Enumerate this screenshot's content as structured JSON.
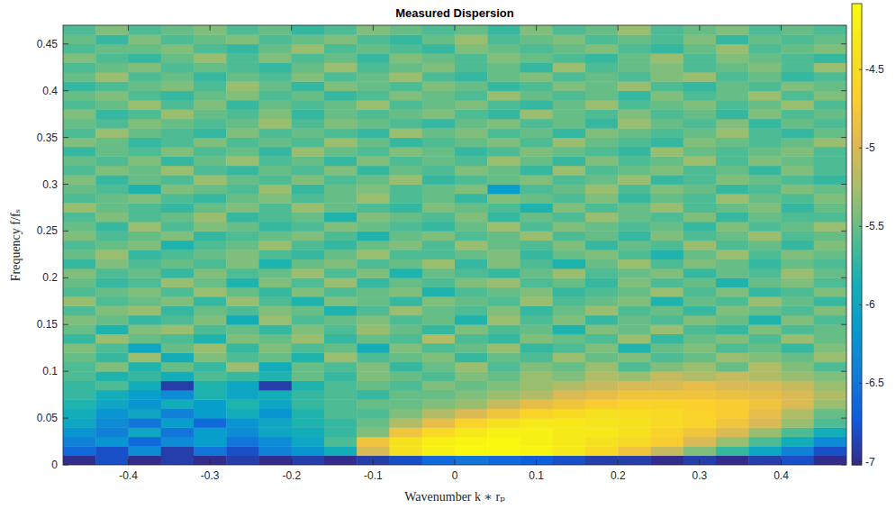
{
  "chart_data": {
    "type": "heatmap",
    "title": "Measured Dispersion",
    "x_label": "Wavenumber k ∗ rₚ",
    "y_label": "Frequency f/fₛ",
    "xlim": [
      -0.48,
      0.48
    ],
    "ylim": [
      0,
      0.47
    ],
    "xticks": [
      -0.4,
      -0.3,
      -0.2,
      -0.1,
      0,
      0.1,
      0.2,
      0.3,
      0.4
    ],
    "yticks": [
      0,
      0.05,
      0.1,
      0.15,
      0.2,
      0.25,
      0.3,
      0.35,
      0.4,
      0.45
    ],
    "color_range": [
      -7.02,
      -4.08
    ],
    "color_ticks": [
      -7,
      -6.5,
      -6,
      -5.5,
      -5,
      -4.5
    ],
    "x": [
      -0.46,
      -0.42,
      -0.38,
      -0.34,
      -0.3,
      -0.26,
      -0.22,
      -0.18,
      -0.14,
      -0.1,
      -0.06,
      -0.02,
      0.02,
      0.06,
      0.1,
      0.14,
      0.18,
      0.22,
      0.26,
      0.3,
      0.34,
      0.38,
      0.42,
      0.46
    ],
    "y": [
      0.005,
      0.015,
      0.025,
      0.035,
      0.045,
      0.055,
      0.065,
      0.075,
      0.085,
      0.095,
      0.105,
      0.115,
      0.125,
      0.135,
      0.145,
      0.155,
      0.165,
      0.175,
      0.185,
      0.195,
      0.205,
      0.215,
      0.225,
      0.235,
      0.245,
      0.255,
      0.265,
      0.275,
      0.285,
      0.295,
      0.305,
      0.315,
      0.325,
      0.335,
      0.345,
      0.355,
      0.365,
      0.375,
      0.385,
      0.395,
      0.405,
      0.415,
      0.425,
      0.435,
      0.445,
      0.455,
      0.465
    ],
    "cells": [
      [
        -7.0,
        -6.8,
        -7.0,
        -6.9,
        -7.0,
        -6.9,
        -7.0,
        -6.9,
        -7.0,
        -6.9,
        -6.8,
        -6.6,
        -6.5,
        -6.6,
        -6.7,
        -6.8,
        -6.9,
        -6.9,
        -7.0,
        -6.9,
        -7.0,
        -6.9,
        -6.8,
        -7.0
      ],
      [
        -6.6,
        -6.8,
        -6.3,
        -6.9,
        -6.5,
        -6.8,
        -6.4,
        -6.2,
        -5.9,
        -5.0,
        -4.4,
        -4.2,
        -4.1,
        -4.1,
        -4.15,
        -4.3,
        -4.5,
        -4.8,
        -5.1,
        -5.4,
        -5.7,
        -6.0,
        -6.4,
        -6.8
      ],
      [
        -6.4,
        -6.2,
        -6.6,
        -6.3,
        -6.1,
        -6.5,
        -6.3,
        -6.0,
        -5.6,
        -4.8,
        -4.4,
        -4.2,
        -4.15,
        -4.1,
        -4.2,
        -4.3,
        -4.4,
        -4.5,
        -4.7,
        -5.0,
        -5.3,
        -5.6,
        -5.9,
        -6.3
      ],
      [
        -6.2,
        -6.4,
        -6.0,
        -6.5,
        -6.1,
        -6.3,
        -6.0,
        -5.9,
        -5.7,
        -5.4,
        -4.8,
        -4.5,
        -4.3,
        -4.2,
        -4.2,
        -4.3,
        -4.3,
        -4.4,
        -4.6,
        -4.8,
        -5.0,
        -5.3,
        -5.6,
        -5.9
      ],
      [
        -6.0,
        -6.3,
        -6.5,
        -6.1,
        -6.6,
        -6.2,
        -6.0,
        -5.8,
        -5.7,
        -5.5,
        -5.2,
        -4.9,
        -4.6,
        -4.4,
        -4.3,
        -4.3,
        -4.35,
        -4.4,
        -4.5,
        -4.6,
        -4.8,
        -5.0,
        -5.3,
        -5.6
      ],
      [
        -5.9,
        -6.2,
        -6.0,
        -6.4,
        -6.1,
        -5.9,
        -6.2,
        -5.8,
        -5.6,
        -5.6,
        -5.4,
        -5.2,
        -5.0,
        -4.8,
        -4.6,
        -4.5,
        -4.4,
        -4.45,
        -4.5,
        -4.6,
        -4.7,
        -4.9,
        -5.2,
        -5.5
      ],
      [
        -5.8,
        -6.0,
        -6.2,
        -5.9,
        -6.1,
        -5.8,
        -6.0,
        -5.7,
        -5.6,
        -5.5,
        -5.5,
        -5.4,
        -5.3,
        -5.1,
        -4.9,
        -4.8,
        -4.7,
        -4.6,
        -4.6,
        -4.65,
        -4.7,
        -4.8,
        -5.0,
        -5.3
      ],
      [
        -5.7,
        -5.9,
        -6.1,
        -6.3,
        -5.8,
        -6.0,
        -5.9,
        -5.7,
        -5.6,
        -5.7,
        -5.5,
        -5.5,
        -5.4,
        -5.3,
        -5.2,
        -5.0,
        -4.9,
        -4.8,
        -4.8,
        -4.8,
        -4.85,
        -4.9,
        -5.0,
        -5.2
      ],
      [
        -5.7,
        -5.6,
        -5.9,
        -6.9,
        -5.8,
        -6.0,
        -6.9,
        -5.8,
        -5.6,
        -5.5,
        -5.6,
        -5.4,
        -5.5,
        -5.4,
        -5.3,
        -5.2,
        -5.1,
        -5.0,
        -5.0,
        -4.9,
        -5.0,
        -5.0,
        -5.1,
        -5.3
      ],
      [
        -5.6,
        -5.8,
        -5.7,
        -5.9,
        -5.6,
        -5.7,
        -5.8,
        -5.5,
        -5.7,
        -5.4,
        -5.5,
        -5.6,
        -5.4,
        -5.5,
        -5.3,
        -5.4,
        -5.2,
        -5.3,
        -5.1,
        -5.2,
        -5.1,
        -5.2,
        -5.3,
        -5.4
      ],
      [
        -5.6,
        -5.4,
        -5.8,
        -5.5,
        -5.7,
        -5.3,
        -5.9,
        -5.5,
        -5.6,
        -5.4,
        -5.7,
        -5.5,
        -5.3,
        -5.6,
        -5.4,
        -5.5,
        -5.3,
        -5.6,
        -5.4,
        -5.3,
        -5.5,
        -5.2,
        -5.4,
        -5.6
      ],
      [
        -5.5,
        -5.7,
        -5.3,
        -5.9,
        -5.4,
        -5.6,
        -5.5,
        -5.8,
        -5.3,
        -5.6,
        -5.5,
        -5.4,
        -5.7,
        -5.5,
        -5.6,
        -5.3,
        -5.5,
        -5.4,
        -5.6,
        -5.5,
        -5.3,
        -5.4,
        -5.5,
        -5.3
      ],
      [
        -5.4,
        -5.6,
        -6.0,
        -5.5,
        -5.3,
        -5.7,
        -5.4,
        -5.6,
        -5.5,
        -5.9,
        -5.4,
        -5.6,
        -5.5,
        -5.3,
        -5.7,
        -5.6,
        -5.4,
        -5.8,
        -5.5,
        -5.4,
        -5.6,
        -5.5,
        -5.7,
        -5.4
      ],
      [
        -5.7,
        -5.3,
        -5.5,
        -5.6,
        -5.8,
        -5.4,
        -5.5,
        -5.3,
        -5.7,
        -5.5,
        -5.6,
        -5.2,
        -5.6,
        -5.7,
        -5.4,
        -5.5,
        -5.6,
        -5.3,
        -5.7,
        -5.5,
        -5.4,
        -5.6,
        -5.3,
        -5.5
      ],
      [
        -5.5,
        -5.8,
        -5.4,
        -5.3,
        -5.6,
        -5.5,
        -5.7,
        -5.4,
        -5.6,
        -5.3,
        -5.5,
        -5.7,
        -5.4,
        -5.6,
        -5.5,
        -5.8,
        -5.4,
        -5.5,
        -5.3,
        -5.6,
        -5.7,
        -5.4,
        -5.6,
        -5.5
      ],
      [
        -5.4,
        -5.5,
        -5.7,
        -5.6,
        -5.4,
        -5.9,
        -5.3,
        -5.6,
        -5.5,
        -5.4,
        -5.6,
        -5.5,
        -5.8,
        -5.3,
        -5.6,
        -5.4,
        -5.7,
        -5.5,
        -5.6,
        -5.4,
        -5.5,
        -5.8,
        -5.4,
        -5.6
      ],
      [
        -5.6,
        -5.4,
        -5.3,
        -5.7,
        -5.5,
        -5.6,
        -5.4,
        -5.5,
        -5.8,
        -5.6,
        -5.3,
        -5.5,
        -5.6,
        -5.4,
        -5.7,
        -5.5,
        -5.3,
        -5.6,
        -5.5,
        -5.7,
        -5.4,
        -5.5,
        -5.6,
        -5.4
      ],
      [
        -5.3,
        -5.6,
        -5.5,
        -5.4,
        -5.7,
        -5.3,
        -5.6,
        -5.8,
        -5.4,
        -5.5,
        -5.7,
        -5.4,
        -5.5,
        -5.6,
        -5.3,
        -5.6,
        -5.5,
        -5.4,
        -5.8,
        -5.5,
        -5.6,
        -5.3,
        -5.5,
        -5.7
      ],
      [
        -5.6,
        -5.5,
        -5.4,
        -5.6,
        -5.3,
        -5.5,
        -5.7,
        -5.4,
        -5.6,
        -5.5,
        -5.4,
        -5.8,
        -5.6,
        -5.5,
        -5.4,
        -5.7,
        -5.6,
        -5.5,
        -5.3,
        -5.6,
        -5.4,
        -5.7,
        -5.6,
        -5.4
      ],
      [
        -5.5,
        -5.7,
        -5.6,
        -5.3,
        -5.5,
        -5.8,
        -5.4,
        -5.6,
        -5.3,
        -5.7,
        -5.5,
        -5.6,
        -5.4,
        -5.3,
        -5.6,
        -5.5,
        -5.7,
        -5.4,
        -5.6,
        -5.5,
        -5.8,
        -5.5,
        -5.4,
        -5.6
      ],
      [
        -5.4,
        -5.6,
        -5.5,
        -5.7,
        -5.4,
        -5.6,
        -5.5,
        -5.3,
        -5.6,
        -5.4,
        -5.8,
        -5.5,
        -5.6,
        -5.7,
        -5.5,
        -5.3,
        -5.6,
        -5.5,
        -5.4,
        -5.7,
        -5.5,
        -5.6,
        -5.3,
        -5.5
      ],
      [
        -5.7,
        -5.4,
        -5.6,
        -5.5,
        -5.6,
        -5.4,
        -5.8,
        -5.5,
        -5.4,
        -5.6,
        -5.5,
        -5.3,
        -5.7,
        -5.4,
        -5.6,
        -5.8,
        -5.5,
        -5.3,
        -5.6,
        -5.4,
        -5.5,
        -5.7,
        -5.5,
        -5.6
      ],
      [
        -5.5,
        -5.3,
        -5.7,
        -5.6,
        -5.5,
        -5.4,
        -5.6,
        -5.7,
        -5.5,
        -5.3,
        -5.6,
        -5.6,
        -5.5,
        -5.4,
        -5.7,
        -5.5,
        -5.4,
        -5.6,
        -5.8,
        -5.5,
        -5.3,
        -5.6,
        -5.4,
        -5.5
      ],
      [
        -5.6,
        -5.5,
        -5.4,
        -5.8,
        -5.6,
        -5.5,
        -5.3,
        -5.6,
        -5.7,
        -5.5,
        -5.4,
        -5.6,
        -5.3,
        -5.5,
        -5.6,
        -5.4,
        -5.7,
        -5.5,
        -5.6,
        -5.3,
        -5.6,
        -5.5,
        -5.7,
        -5.4
      ],
      [
        -5.4,
        -5.6,
        -5.5,
        -5.4,
        -5.7,
        -5.6,
        -5.5,
        -5.4,
        -5.6,
        -5.8,
        -5.5,
        -5.4,
        -5.6,
        -5.5,
        -5.3,
        -5.6,
        -5.5,
        -5.7,
        -5.4,
        -5.6,
        -5.5,
        -5.3,
        -5.6,
        -5.5
      ],
      [
        -5.5,
        -5.7,
        -5.3,
        -5.6,
        -5.4,
        -5.5,
        -5.7,
        -5.6,
        -5.4,
        -5.5,
        -5.6,
        -5.7,
        -5.5,
        -5.3,
        -5.6,
        -5.4,
        -5.5,
        -5.6,
        -5.5,
        -5.7,
        -5.4,
        -5.6,
        -5.5,
        -5.3
      ],
      [
        -5.6,
        -5.4,
        -5.6,
        -5.5,
        -5.3,
        -5.7,
        -5.6,
        -5.5,
        -5.8,
        -5.4,
        -5.5,
        -5.6,
        -5.4,
        -5.7,
        -5.5,
        -5.6,
        -5.3,
        -5.5,
        -5.6,
        -5.4,
        -5.7,
        -5.5,
        -5.6,
        -5.6
      ],
      [
        -5.3,
        -5.5,
        -5.6,
        -5.7,
        -5.5,
        -5.4,
        -5.6,
        -5.3,
        -5.5,
        -5.6,
        -5.7,
        -5.4,
        -5.5,
        -5.6,
        -5.8,
        -5.4,
        -5.6,
        -5.5,
        -5.3,
        -5.6,
        -5.5,
        -5.4,
        -5.7,
        -5.5
      ],
      [
        -5.6,
        -5.5,
        -5.4,
        -5.6,
        -5.7,
        -5.5,
        -5.4,
        -5.6,
        -5.5,
        -5.3,
        -5.6,
        -5.5,
        -5.7,
        -5.4,
        -5.5,
        -5.6,
        -5.4,
        -5.7,
        -5.5,
        -5.6,
        -5.3,
        -5.5,
        -5.6,
        -5.4
      ],
      [
        -5.5,
        -5.6,
        -5.8,
        -5.4,
        -5.5,
        -5.6,
        -5.3,
        -5.7,
        -5.5,
        -5.4,
        -5.6,
        -5.5,
        -5.4,
        -6.1,
        -5.6,
        -5.5,
        -5.3,
        -5.6,
        -5.4,
        -5.5,
        -5.7,
        -5.6,
        -5.4,
        -5.5
      ],
      [
        -5.4,
        -5.7,
        -5.5,
        -5.6,
        -5.3,
        -5.5,
        -5.6,
        -5.4,
        -5.6,
        -5.5,
        -5.3,
        -5.7,
        -5.6,
        -5.5,
        -5.4,
        -5.6,
        -5.5,
        -5.3,
        -5.7,
        -5.6,
        -5.4,
        -5.5,
        -5.6,
        -5.7
      ],
      [
        -5.6,
        -5.4,
        -5.5,
        -5.3,
        -5.6,
        -5.7,
        -5.5,
        -5.6,
        -5.4,
        -5.7,
        -5.5,
        -5.6,
        -5.4,
        -5.5,
        -5.7,
        -5.3,
        -5.6,
        -5.5,
        -5.4,
        -5.6,
        -5.5,
        -5.7,
        -5.4,
        -5.6
      ],
      [
        -5.5,
        -5.6,
        -5.4,
        -5.7,
        -5.5,
        -5.3,
        -5.6,
        -5.5,
        -5.7,
        -5.4,
        -5.6,
        -5.5,
        -5.6,
        -5.3,
        -5.5,
        -5.7,
        -5.4,
        -5.6,
        -5.5,
        -5.3,
        -5.6,
        -5.4,
        -5.5,
        -5.6
      ],
      [
        -5.7,
        -5.5,
        -5.6,
        -5.4,
        -5.6,
        -5.5,
        -5.7,
        -5.3,
        -5.5,
        -5.6,
        -5.4,
        -5.5,
        -5.7,
        -5.6,
        -5.4,
        -5.5,
        -5.6,
        -5.7,
        -5.3,
        -5.5,
        -5.6,
        -5.5,
        -5.4,
        -5.6
      ],
      [
        -5.4,
        -5.5,
        -5.7,
        -5.6,
        -5.4,
        -5.6,
        -5.5,
        -5.6,
        -5.3,
        -5.5,
        -5.7,
        -5.6,
        -5.5,
        -5.4,
        -5.6,
        -5.3,
        -5.5,
        -5.6,
        -5.7,
        -5.4,
        -5.5,
        -5.6,
        -5.5,
        -5.3
      ],
      [
        -5.6,
        -5.3,
        -5.5,
        -5.6,
        -5.7,
        -5.4,
        -5.6,
        -5.5,
        -5.6,
        -5.7,
        -5.3,
        -5.5,
        -5.4,
        -5.6,
        -5.5,
        -5.7,
        -5.4,
        -5.5,
        -5.6,
        -5.5,
        -5.3,
        -5.6,
        -5.7,
        -5.5
      ],
      [
        -5.5,
        -5.6,
        -5.4,
        -5.5,
        -5.6,
        -5.5,
        -5.3,
        -5.6,
        -5.4,
        -5.5,
        -5.6,
        -5.7,
        -5.5,
        -5.4,
        -5.6,
        -5.5,
        -5.7,
        -5.3,
        -5.5,
        -5.6,
        -5.4,
        -5.7,
        -5.5,
        -5.6
      ],
      [
        -5.4,
        -5.7,
        -5.6,
        -5.3,
        -5.5,
        -5.6,
        -5.4,
        -5.7,
        -5.5,
        -5.6,
        -5.5,
        -5.4,
        -5.6,
        -5.7,
        -5.3,
        -5.5,
        -5.6,
        -5.4,
        -5.6,
        -5.5,
        -5.7,
        -5.4,
        -5.6,
        -5.5
      ],
      [
        -5.6,
        -5.5,
        -5.3,
        -5.6,
        -5.4,
        -5.7,
        -5.5,
        -5.6,
        -5.5,
        -5.3,
        -5.6,
        -5.5,
        -5.4,
        -5.6,
        -5.7,
        -5.5,
        -5.3,
        -5.6,
        -5.5,
        -5.4,
        -5.6,
        -5.5,
        -5.3,
        -5.6
      ],
      [
        -5.5,
        -5.4,
        -5.6,
        -5.7,
        -5.5,
        -5.4,
        -5.6,
        -5.5,
        -5.7,
        -5.6,
        -5.4,
        -5.5,
        -5.6,
        -5.3,
        -5.5,
        -5.6,
        -5.5,
        -5.7,
        -5.4,
        -5.6,
        -5.5,
        -5.3,
        -5.6,
        -5.4
      ],
      [
        -5.7,
        -5.6,
        -5.5,
        -5.4,
        -5.6,
        -5.3,
        -5.5,
        -5.7,
        -5.4,
        -5.5,
        -5.6,
        -5.4,
        -5.5,
        -5.7,
        -5.6,
        -5.4,
        -5.5,
        -5.3,
        -5.6,
        -5.7,
        -5.5,
        -5.6,
        -5.4,
        -5.5
      ],
      [
        -5.5,
        -5.3,
        -5.6,
        -5.5,
        -5.7,
        -5.5,
        -5.6,
        -5.4,
        -5.6,
        -5.5,
        -5.3,
        -5.6,
        -5.7,
        -5.5,
        -5.4,
        -5.6,
        -5.5,
        -5.6,
        -5.4,
        -5.3,
        -5.6,
        -5.5,
        -5.7,
        -5.6
      ],
      [
        -5.6,
        -5.5,
        -5.4,
        -5.6,
        -5.5,
        -5.6,
        -5.7,
        -5.5,
        -5.3,
        -5.6,
        -5.5,
        -5.4,
        -5.6,
        -5.5,
        -5.7,
        -5.3,
        -5.6,
        -5.5,
        -5.4,
        -5.6,
        -5.5,
        -5.4,
        -5.6,
        -5.3
      ],
      [
        -5.4,
        -5.6,
        -5.7,
        -5.5,
        -5.3,
        -5.6,
        -5.4,
        -5.6,
        -5.5,
        -5.7,
        -5.4,
        -5.5,
        -5.6,
        -5.4,
        -5.5,
        -5.6,
        -5.7,
        -5.5,
        -5.3,
        -5.6,
        -5.4,
        -5.5,
        -5.6,
        -5.7
      ],
      [
        -5.6,
        -5.5,
        -5.5,
        -5.4,
        -5.6,
        -5.7,
        -5.5,
        -5.3,
        -5.6,
        -5.5,
        -5.6,
        -5.7,
        -5.4,
        -5.5,
        -5.6,
        -5.5,
        -5.4,
        -5.6,
        -5.7,
        -5.5,
        -5.3,
        -5.6,
        -5.5,
        -5.4
      ],
      [
        -5.5,
        -5.7,
        -5.4,
        -5.6,
        -5.5,
        -5.4,
        -5.6,
        -5.5,
        -5.4,
        -5.6,
        -5.7,
        -5.5,
        -5.3,
        -5.6,
        -5.5,
        -5.4,
        -5.6,
        -5.5,
        -5.6,
        -5.4,
        -5.7,
        -5.5,
        -5.6,
        -5.5
      ],
      [
        -5.6,
        -5.4,
        -5.6,
        -5.5,
        -5.4,
        -5.6,
        -5.5,
        -5.7,
        -5.6,
        -5.4,
        -5.5,
        -5.6,
        -5.5,
        -5.7,
        -5.4,
        -5.6,
        -5.5,
        -5.3,
        -5.6,
        -5.5,
        -5.4,
        -5.6,
        -5.5,
        -5.6
      ]
    ]
  }
}
